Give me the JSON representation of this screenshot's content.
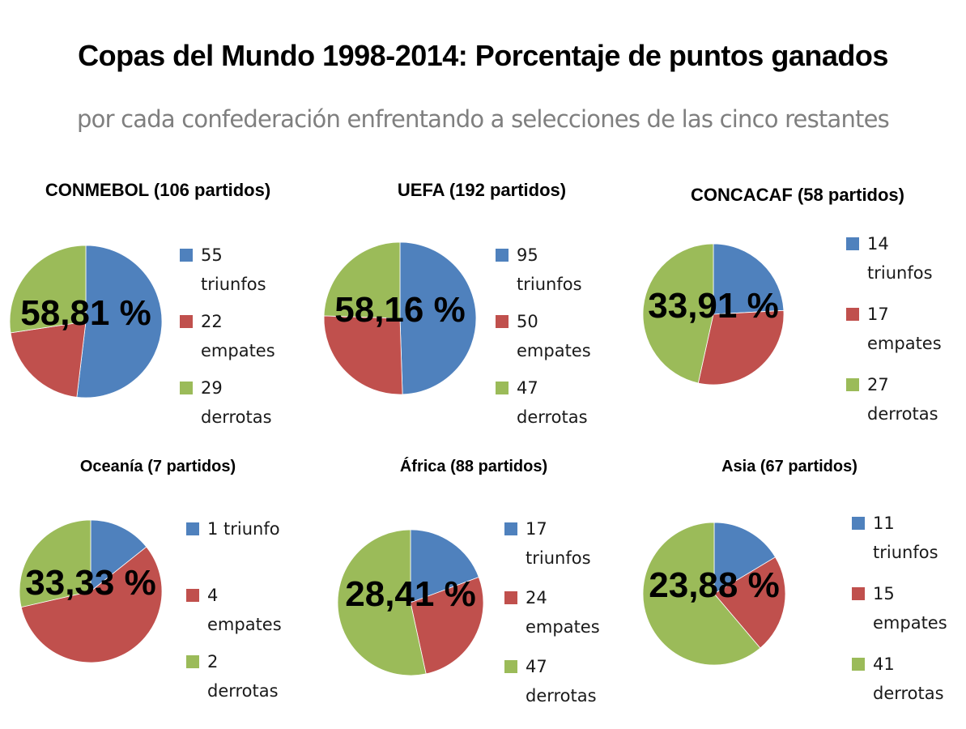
{
  "title": "Copas del Mundo 1998-2014: Porcentaje de puntos ganados",
  "subtitle": "por cada confederación enfrentando a selecciones de las cinco restantes",
  "colors": {
    "triunfos": "#4F81BD",
    "empates": "#C0504D",
    "derrotas": "#9BBB59"
  },
  "chart_data": [
    {
      "type": "pie",
      "title": "CONMEBOL (106 partidos)",
      "categories": [
        "triunfos",
        "empates",
        "derrotas"
      ],
      "values": [
        55,
        22,
        29
      ],
      "annotation": "58,81 %",
      "legend": [
        {
          "line1": "55",
          "line2": "triunfos"
        },
        {
          "line1": "22",
          "line2": "empates"
        },
        {
          "line1": "29",
          "line2": "derrotas"
        }
      ],
      "legend_placement": "right"
    },
    {
      "type": "pie",
      "title": "UEFA (192 partidos)",
      "categories": [
        "triunfos",
        "empates",
        "derrotas"
      ],
      "values": [
        95,
        50,
        47
      ],
      "annotation": "58,16 %",
      "legend": [
        {
          "line1": "95",
          "line2": "triunfos"
        },
        {
          "line1": "50",
          "line2": "empates"
        },
        {
          "line1": "47",
          "line2": "derrotas"
        }
      ],
      "legend_placement": "right"
    },
    {
      "type": "pie",
      "title": "CONCACAF (58 partidos)",
      "categories": [
        "triunfos",
        "empates",
        "derrotas"
      ],
      "values": [
        14,
        17,
        27
      ],
      "annotation": "33,91 %",
      "legend": [
        {
          "line1": "14",
          "line2": "triunfos"
        },
        {
          "line1": "17",
          "line2": "empates"
        },
        {
          "line1": "27",
          "line2": "derrotas"
        }
      ],
      "legend_placement": "right"
    },
    {
      "type": "pie",
      "title": "Oceanía (7 partidos)",
      "categories": [
        "triunfo",
        "empates",
        "derrotas"
      ],
      "values": [
        1,
        4,
        2
      ],
      "annotation": "33,33 %",
      "legend": [
        {
          "line1": "1 triunfo",
          "line2": ""
        },
        {
          "line1": "4",
          "line2": "empates"
        },
        {
          "line1": "2",
          "line2": "derrotas"
        }
      ],
      "legend_placement": "right"
    },
    {
      "type": "pie",
      "title": "África (88 partidos)",
      "categories": [
        "triunfos",
        "empates",
        "derrotas"
      ],
      "values": [
        17,
        24,
        47
      ],
      "annotation": "28,41 %",
      "legend": [
        {
          "line1": "17",
          "line2": "triunfos"
        },
        {
          "line1": "24",
          "line2": "empates"
        },
        {
          "line1": "47",
          "line2": "derrotas"
        }
      ],
      "legend_placement": "right"
    },
    {
      "type": "pie",
      "title": "Asia (67 partidos)",
      "categories": [
        "triunfos",
        "empates",
        "derrotas"
      ],
      "values": [
        11,
        15,
        41
      ],
      "annotation": "23,88 %",
      "legend": [
        {
          "line1": "11",
          "line2": "triunfos"
        },
        {
          "line1": "15",
          "line2": "empates"
        },
        {
          "line1": "41",
          "line2": "derrotas"
        }
      ],
      "legend_placement": "right"
    }
  ]
}
